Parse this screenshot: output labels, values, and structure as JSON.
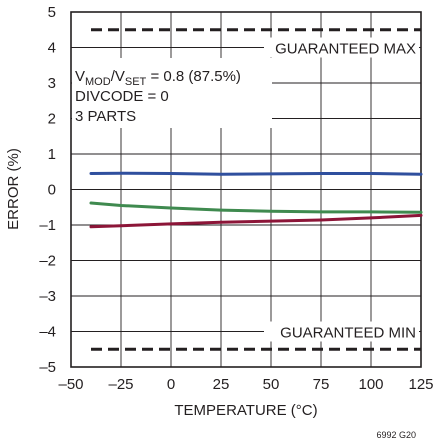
{
  "chart_data": {
    "type": "line",
    "xlabel": "TEMPERATURE (°C)",
    "ylabel": "ERROR (%)",
    "xlim": [
      -50,
      125
    ],
    "ylim": [
      -5,
      5
    ],
    "xticks": [
      -50,
      -25,
      0,
      25,
      50,
      75,
      100,
      125
    ],
    "yticks": [
      5,
      4,
      3,
      2,
      1,
      0,
      -1,
      -2,
      -3,
      -4,
      -5
    ],
    "xtick_labels": [
      "–50",
      "–25",
      "0",
      "25",
      "50",
      "75",
      "100",
      "125"
    ],
    "ytick_labels": [
      "5",
      "4",
      "3",
      "2",
      "1",
      "0",
      "–1",
      "–2",
      "–3",
      "–4",
      "–5"
    ],
    "grid": true,
    "series": [
      {
        "color": "#2f4f9e",
        "x": [
          -40,
          -25,
          0,
          25,
          50,
          75,
          100,
          125
        ],
        "y": [
          0.45,
          0.46,
          0.45,
          0.43,
          0.44,
          0.45,
          0.45,
          0.43
        ]
      },
      {
        "color": "#3f8a4f",
        "x": [
          -40,
          -25,
          0,
          25,
          50,
          75,
          100,
          125
        ],
        "y": [
          -0.38,
          -0.45,
          -0.52,
          -0.58,
          -0.61,
          -0.63,
          -0.63,
          -0.64
        ]
      },
      {
        "color": "#8c1538",
        "x": [
          -40,
          -25,
          0,
          25,
          50,
          75,
          100,
          125
        ],
        "y": [
          -1.05,
          -1.02,
          -0.97,
          -0.92,
          -0.89,
          -0.86,
          -0.8,
          -0.73
        ]
      }
    ],
    "limits": [
      {
        "label": "GUARANTEED MAX",
        "value": 4.5
      },
      {
        "label": "GUARANTEED MIN",
        "value": -4.5
      }
    ],
    "annotation": {
      "v_mod": "V",
      "mod_sub": "MOD",
      "slash_v": "/V",
      "set_sub": "SET",
      "ratio": " = 0.8 (87.5%)",
      "divcode": "DIVCODE = 0",
      "parts": "3 PARTS"
    },
    "figure_id": "6992 G20"
  }
}
